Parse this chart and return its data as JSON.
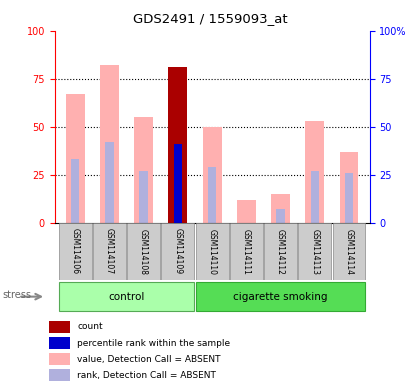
{
  "title": "GDS2491 / 1559093_at",
  "samples": [
    "GSM114106",
    "GSM114107",
    "GSM114108",
    "GSM114109",
    "GSM114110",
    "GSM114111",
    "GSM114112",
    "GSM114113",
    "GSM114114"
  ],
  "value_absent": [
    67,
    82,
    55,
    null,
    50,
    12,
    15,
    53,
    37
  ],
  "rank_absent": [
    33,
    42,
    27,
    null,
    29,
    null,
    7,
    27,
    26
  ],
  "count_value": [
    null,
    null,
    null,
    81,
    null,
    null,
    null,
    null,
    null
  ],
  "percentile_rank": [
    null,
    null,
    null,
    41,
    null,
    null,
    null,
    null,
    null
  ],
  "colors": {
    "count": "#AA0000",
    "percentile_rank": "#0000CC",
    "value_absent": "#FFB0B0",
    "rank_absent": "#B0B0DD",
    "control_bg": "#AAFFAA",
    "smoking_bg": "#55DD55"
  },
  "ylim": [
    0,
    100
  ],
  "yticks": [
    0,
    25,
    50,
    75,
    100
  ],
  "legend_items": [
    [
      "#AA0000",
      "count"
    ],
    [
      "#0000CC",
      "percentile rank within the sample"
    ],
    [
      "#FFB0B0",
      "value, Detection Call = ABSENT"
    ],
    [
      "#B0B0DD",
      "rank, Detection Call = ABSENT"
    ]
  ],
  "group_control_indices": [
    0,
    3
  ],
  "group_smoking_indices": [
    4,
    8
  ],
  "group_control_label": "control",
  "group_smoking_label": "cigarette smoking",
  "stress_label": "stress"
}
